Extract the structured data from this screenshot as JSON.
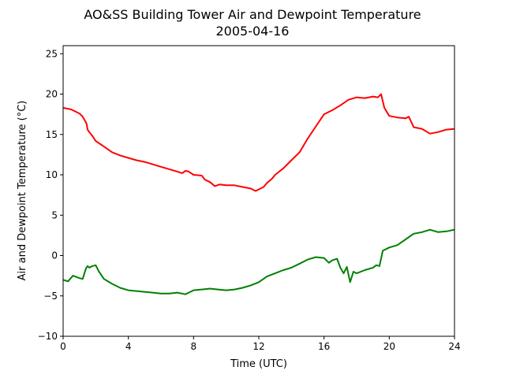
{
  "chart_data": {
    "type": "line",
    "title": "AO&SS Building Tower Air and Dewpoint Temperature",
    "subtitle": "2005-04-16",
    "xlabel": "Time (UTC)",
    "ylabel": "Air and Dewpoint Temperature (°C)",
    "xlim": [
      0,
      24
    ],
    "ylim": [
      -10,
      26
    ],
    "xticks": [
      0,
      4,
      8,
      12,
      16,
      20,
      24
    ],
    "yticks": [
      -10,
      -5,
      0,
      5,
      10,
      15,
      20,
      25
    ],
    "grid": false,
    "series": [
      {
        "color": "#ff0000",
        "x": [
          0,
          0.5,
          1.0,
          1.2,
          1.4,
          1.45,
          1.5,
          1.6,
          1.8,
          2.0,
          2.5,
          3.0,
          3.5,
          4.0,
          4.5,
          5.0,
          5.5,
          6.0,
          6.5,
          7.0,
          7.3,
          7.5,
          7.7,
          8.0,
          8.5,
          8.7,
          9.0,
          9.3,
          9.6,
          10.0,
          10.5,
          11.0,
          11.5,
          11.8,
          12.0,
          12.3,
          12.5,
          12.8,
          13.0,
          13.5,
          14.0,
          14.5,
          15.0,
          15.5,
          16.0,
          16.5,
          17.0,
          17.5,
          18.0,
          18.5,
          19.0,
          19.3,
          19.5,
          19.7,
          20.0,
          20.5,
          21.0,
          21.2,
          21.5,
          22.0,
          22.5,
          23.0,
          23.5,
          24.0
        ],
        "y": [
          18.3,
          18.1,
          17.6,
          17.2,
          16.5,
          16.2,
          15.6,
          15.3,
          14.8,
          14.2,
          13.5,
          12.8,
          12.4,
          12.1,
          11.8,
          11.6,
          11.3,
          11.0,
          10.7,
          10.4,
          10.2,
          10.5,
          10.4,
          10.0,
          9.9,
          9.4,
          9.1,
          8.6,
          8.8,
          8.7,
          8.7,
          8.5,
          8.3,
          8.0,
          8.2,
          8.5,
          9.0,
          9.5,
          10.0,
          10.8,
          11.8,
          12.8,
          14.5,
          16.0,
          17.5,
          18.0,
          18.6,
          19.3,
          19.6,
          19.5,
          19.7,
          19.6,
          20.0,
          18.3,
          17.3,
          17.1,
          17.0,
          17.2,
          15.9,
          15.7,
          15.1,
          15.3,
          15.6,
          15.7
        ]
      },
      {
        "color": "#008000",
        "x": [
          0,
          0.3,
          0.6,
          1.0,
          1.2,
          1.4,
          1.5,
          1.6,
          1.8,
          2.0,
          2.2,
          2.5,
          3.0,
          3.5,
          4.0,
          4.5,
          5.0,
          5.5,
          6.0,
          6.5,
          7.0,
          7.5,
          7.8,
          8.0,
          8.5,
          9.0,
          9.5,
          10.0,
          10.5,
          11.0,
          11.5,
          12.0,
          12.5,
          13.0,
          13.5,
          14.0,
          14.5,
          15.0,
          15.5,
          16.0,
          16.3,
          16.5,
          16.8,
          17.0,
          17.2,
          17.4,
          17.6,
          17.8,
          18.0,
          18.5,
          19.0,
          19.2,
          19.4,
          19.6,
          20.0,
          20.5,
          21.0,
          21.5,
          22.0,
          22.5,
          23.0,
          23.5,
          24.0
        ],
        "y": [
          -3.0,
          -3.2,
          -2.5,
          -2.8,
          -2.9,
          -1.6,
          -1.3,
          -1.5,
          -1.3,
          -1.2,
          -2.0,
          -2.9,
          -3.5,
          -4.0,
          -4.3,
          -4.4,
          -4.5,
          -4.6,
          -4.7,
          -4.7,
          -4.6,
          -4.8,
          -4.5,
          -4.3,
          -4.2,
          -4.1,
          -4.2,
          -4.3,
          -4.2,
          -4.0,
          -3.7,
          -3.3,
          -2.6,
          -2.2,
          -1.8,
          -1.5,
          -1.0,
          -0.5,
          -0.2,
          -0.3,
          -0.9,
          -0.6,
          -0.4,
          -1.5,
          -2.2,
          -1.4,
          -3.3,
          -2.0,
          -2.2,
          -1.8,
          -1.5,
          -1.2,
          -1.3,
          0.6,
          1.0,
          1.3,
          2.0,
          2.7,
          2.9,
          3.2,
          2.9,
          3.0,
          3.2
        ]
      }
    ]
  }
}
